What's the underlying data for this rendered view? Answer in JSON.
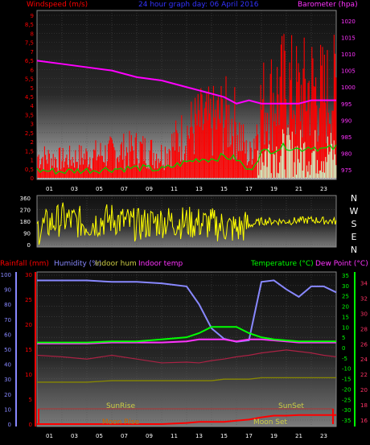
{
  "top_panel": {
    "title": "24 hour graph day: 06 April 2016",
    "left_label": "Windspeed (m/s)",
    "right_label": "Barometer (hpa)",
    "left_ticks": [
      "0",
      "0,5",
      "1",
      "1,5",
      "2",
      "2,5",
      "3",
      "3,5",
      "4",
      "4,5",
      "5",
      "5,5",
      "6",
      "6,5",
      "7",
      "7,5",
      "8",
      "8,5",
      "9"
    ],
    "right_ticks": [
      "975",
      "980",
      "985",
      "990",
      "995",
      "1000",
      "1005",
      "1010",
      "1015",
      "1020"
    ]
  },
  "hour_labels": [
    "01",
    "03",
    "05",
    "07",
    "09",
    "11",
    "13",
    "15",
    "17",
    "19",
    "21",
    "23"
  ],
  "direction_panel": {
    "ticks": [
      "0",
      "90",
      "180",
      "270",
      "360"
    ],
    "compass": [
      "N",
      "W",
      "S",
      "E",
      "N"
    ]
  },
  "bottom_panel": {
    "labels": {
      "rain": "Rainfall (mm)",
      "humidity": "Humidity (%)",
      "indoor_hum": "Indoor hum",
      "indoor_temp": "Indoor temp",
      "temperature": "Temperature (°C)",
      "dew_point": "Dew Point (°C)"
    },
    "left_ticks": [
      "0",
      "10",
      "20",
      "30",
      "40",
      "50",
      "60",
      "70",
      "80",
      "90",
      "100"
    ],
    "rain_ticks": [
      "0",
      "5",
      "10",
      "15",
      "20",
      "25",
      "30"
    ],
    "temp_ticks": [
      "-35",
      "-30",
      "-25",
      "-20",
      "-15",
      "-10",
      "-5",
      "0",
      "5",
      "10",
      "15",
      "20",
      "25",
      "30",
      "35"
    ],
    "indoor_ticks": [
      "16",
      "18",
      "20",
      "22",
      "24",
      "26",
      "28",
      "30",
      "32",
      "34"
    ],
    "annotations": {
      "sunrise": "SunRise",
      "sunset": "SunSet",
      "moonrise": "Moon Rise",
      "moonset": "Moon Set"
    }
  },
  "colors": {
    "wind": "#ff0000",
    "gust": "#ff0000",
    "avg_wind": "#00d000",
    "barometer": "#ff00ff",
    "direction": "#ffff00",
    "humidity": "#8888ff",
    "temperature": "#00ff00",
    "dew_point": "#ff33ff",
    "indoor_hum": "#888800",
    "indoor_temp": "#aa2244",
    "rain": "#ff0000",
    "title": "#3333ff",
    "grid": "#555555"
  },
  "chart_data": [
    {
      "type": "line",
      "title": "24 hour graph day: 06 April 2016",
      "xlabel": "",
      "ylabel": "Windspeed (m/s)",
      "y2label": "Barometer (hpa)",
      "x": [
        0,
        2,
        4,
        6,
        8,
        10,
        12,
        13,
        14,
        15,
        16,
        17,
        18,
        19,
        20,
        21,
        22,
        23,
        24
      ],
      "ylim": [
        0,
        9
      ],
      "y2lim": [
        973,
        1022
      ],
      "series": [
        {
          "name": "Windspeed (m/s)",
          "values": [
            1.2,
            1.0,
            1.2,
            1.4,
            1.6,
            1.3,
            2.5,
            3.0,
            3.0,
            3.4,
            3.0,
            1.0,
            4.0,
            4.5,
            5.0,
            4.5,
            5.0,
            4.5,
            4.8
          ]
        },
        {
          "name": "Barometer (hpa)",
          "axis": "right",
          "values": [
            1008,
            1007,
            1006,
            1005,
            1003,
            1002,
            1000,
            999,
            998,
            997,
            995,
            996,
            995,
            995,
            995,
            995,
            996,
            996,
            996
          ]
        }
      ]
    },
    {
      "type": "line",
      "title": "",
      "ylim": [
        0,
        360
      ],
      "x": [
        0,
        2,
        4,
        6,
        8,
        10,
        12,
        14,
        16,
        18,
        20,
        22,
        24
      ],
      "series": [
        {
          "name": "",
          "values": [
            120,
            200,
            160,
            200,
            150,
            180,
            170,
            160,
            120,
            180,
            180,
            190,
            180
          ]
        }
      ]
    },
    {
      "type": "line",
      "title": "",
      "x": [
        0,
        2,
        4,
        6,
        8,
        10,
        12,
        13,
        14,
        15,
        16,
        17,
        18,
        19,
        20,
        21,
        22,
        23,
        24
      ],
      "ylim": [
        0,
        100
      ],
      "y2lim": [
        -35,
        35
      ],
      "series": [
        {
          "name": "Humidity (%)",
          "values": [
            96,
            96,
            96,
            95,
            95,
            94,
            92,
            80,
            64,
            57,
            55,
            56,
            95,
            96,
            90,
            85,
            92,
            92,
            88
          ]
        },
        {
          "name": "Temperature (°C)",
          "values": [
            2.5,
            2.5,
            2.5,
            3,
            3,
            4,
            5,
            7,
            10,
            10,
            10,
            7,
            5,
            4,
            3.5,
            3,
            3,
            3,
            3
          ]
        },
        {
          "name": "Dew Point (°C)",
          "values": [
            2,
            2,
            2,
            2.5,
            2.5,
            2.5,
            3,
            4,
            4,
            4,
            3,
            4,
            4,
            3.5,
            3,
            2.5,
            2.5,
            2.5,
            2.5
          ]
        },
        {
          "name": "Indoor hum",
          "values": [
            28,
            28,
            28,
            29,
            29,
            29,
            29,
            29,
            29,
            30,
            30,
            30,
            31,
            31,
            31,
            31,
            31,
            31,
            31
          ]
        },
        {
          "name": "Indoor temp",
          "values": [
            24.5,
            24.3,
            24,
            24.5,
            24,
            23.5,
            23.6,
            23.5,
            23.8,
            24,
            24.3,
            24.5,
            24.8,
            25,
            25.2,
            25,
            24.8,
            24.5,
            24.3
          ]
        },
        {
          "name": "Rainfall (mm)",
          "values": [
            0,
            0,
            0,
            0,
            0,
            0,
            0.2,
            0.4,
            0.4,
            0.4,
            0.6,
            0.8,
            1.2,
            1.5,
            1.5,
            1.6,
            1.6,
            1.6,
            1.6
          ]
        }
      ]
    }
  ]
}
